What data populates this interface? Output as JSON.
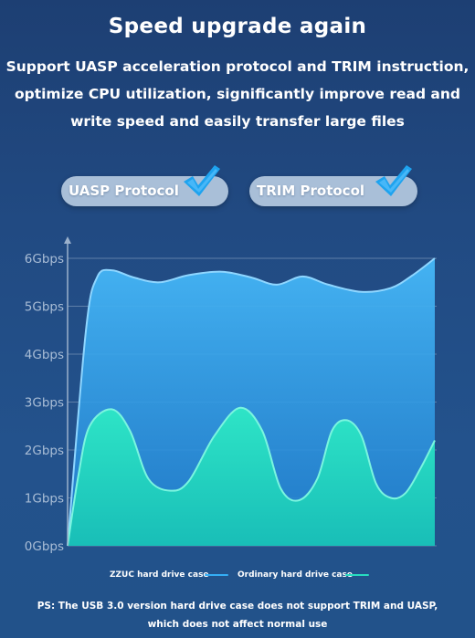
{
  "header": {
    "title": "Speed upgrade again",
    "subtitle_lines": [
      "Support UASP acceleration protocol and TRIM instruction,",
      "optimize CPU utilization, significantly improve read and",
      "write speed and easily transfer large files"
    ]
  },
  "badges": [
    {
      "label": "UASP Protocol",
      "icon": "checkmark-icon"
    },
    {
      "label": "TRIM Protocol",
      "icon": "checkmark-icon"
    }
  ],
  "colors": {
    "zzuc_series": "#34aef6",
    "ordinary_series": "#27dcc0",
    "badge_bg": "#a9bfd8",
    "check": "#1ea3ef"
  },
  "chart_data": {
    "type": "area",
    "y_tick_labels": [
      "0Gbps",
      "1Gbps",
      "2Gbps",
      "3Gbps",
      "4Gbps",
      "5Gbps",
      "6Gbps"
    ],
    "ylim": [
      0,
      6
    ],
    "grid": true,
    "legend_position": "bottom",
    "series": [
      {
        "name": "ZZUC hard drive case",
        "color": "#34aef6",
        "points": [
          [
            0,
            0
          ],
          [
            0.05,
            4.5
          ],
          [
            0.08,
            5.6
          ],
          [
            0.12,
            5.75
          ],
          [
            0.18,
            5.6
          ],
          [
            0.25,
            5.5
          ],
          [
            0.33,
            5.65
          ],
          [
            0.42,
            5.72
          ],
          [
            0.5,
            5.6
          ],
          [
            0.57,
            5.45
          ],
          [
            0.64,
            5.62
          ],
          [
            0.71,
            5.45
          ],
          [
            0.8,
            5.3
          ],
          [
            0.88,
            5.38
          ],
          [
            0.94,
            5.65
          ],
          [
            1,
            6.0
          ]
        ]
      },
      {
        "name": "Ordinary hard drive case",
        "color": "#27dcc0",
        "points": [
          [
            0,
            0
          ],
          [
            0.03,
            1.5
          ],
          [
            0.06,
            2.5
          ],
          [
            0.12,
            2.85
          ],
          [
            0.17,
            2.4
          ],
          [
            0.22,
            1.4
          ],
          [
            0.28,
            1.15
          ],
          [
            0.33,
            1.35
          ],
          [
            0.4,
            2.3
          ],
          [
            0.47,
            2.88
          ],
          [
            0.53,
            2.4
          ],
          [
            0.58,
            1.2
          ],
          [
            0.63,
            0.95
          ],
          [
            0.68,
            1.4
          ],
          [
            0.72,
            2.4
          ],
          [
            0.76,
            2.62
          ],
          [
            0.8,
            2.3
          ],
          [
            0.84,
            1.3
          ],
          [
            0.88,
            1.0
          ],
          [
            0.92,
            1.1
          ],
          [
            0.96,
            1.6
          ],
          [
            1,
            2.2
          ]
        ]
      }
    ]
  },
  "legend": {
    "zzuc_label": "ZZUC hard drive case",
    "ordinary_label": "Ordinary hard drive case"
  },
  "footnote": {
    "lines": [
      "PS: The USB 3.0 version hard drive case does not support TRIM and UASP,",
      "which does not affect normal use"
    ]
  }
}
